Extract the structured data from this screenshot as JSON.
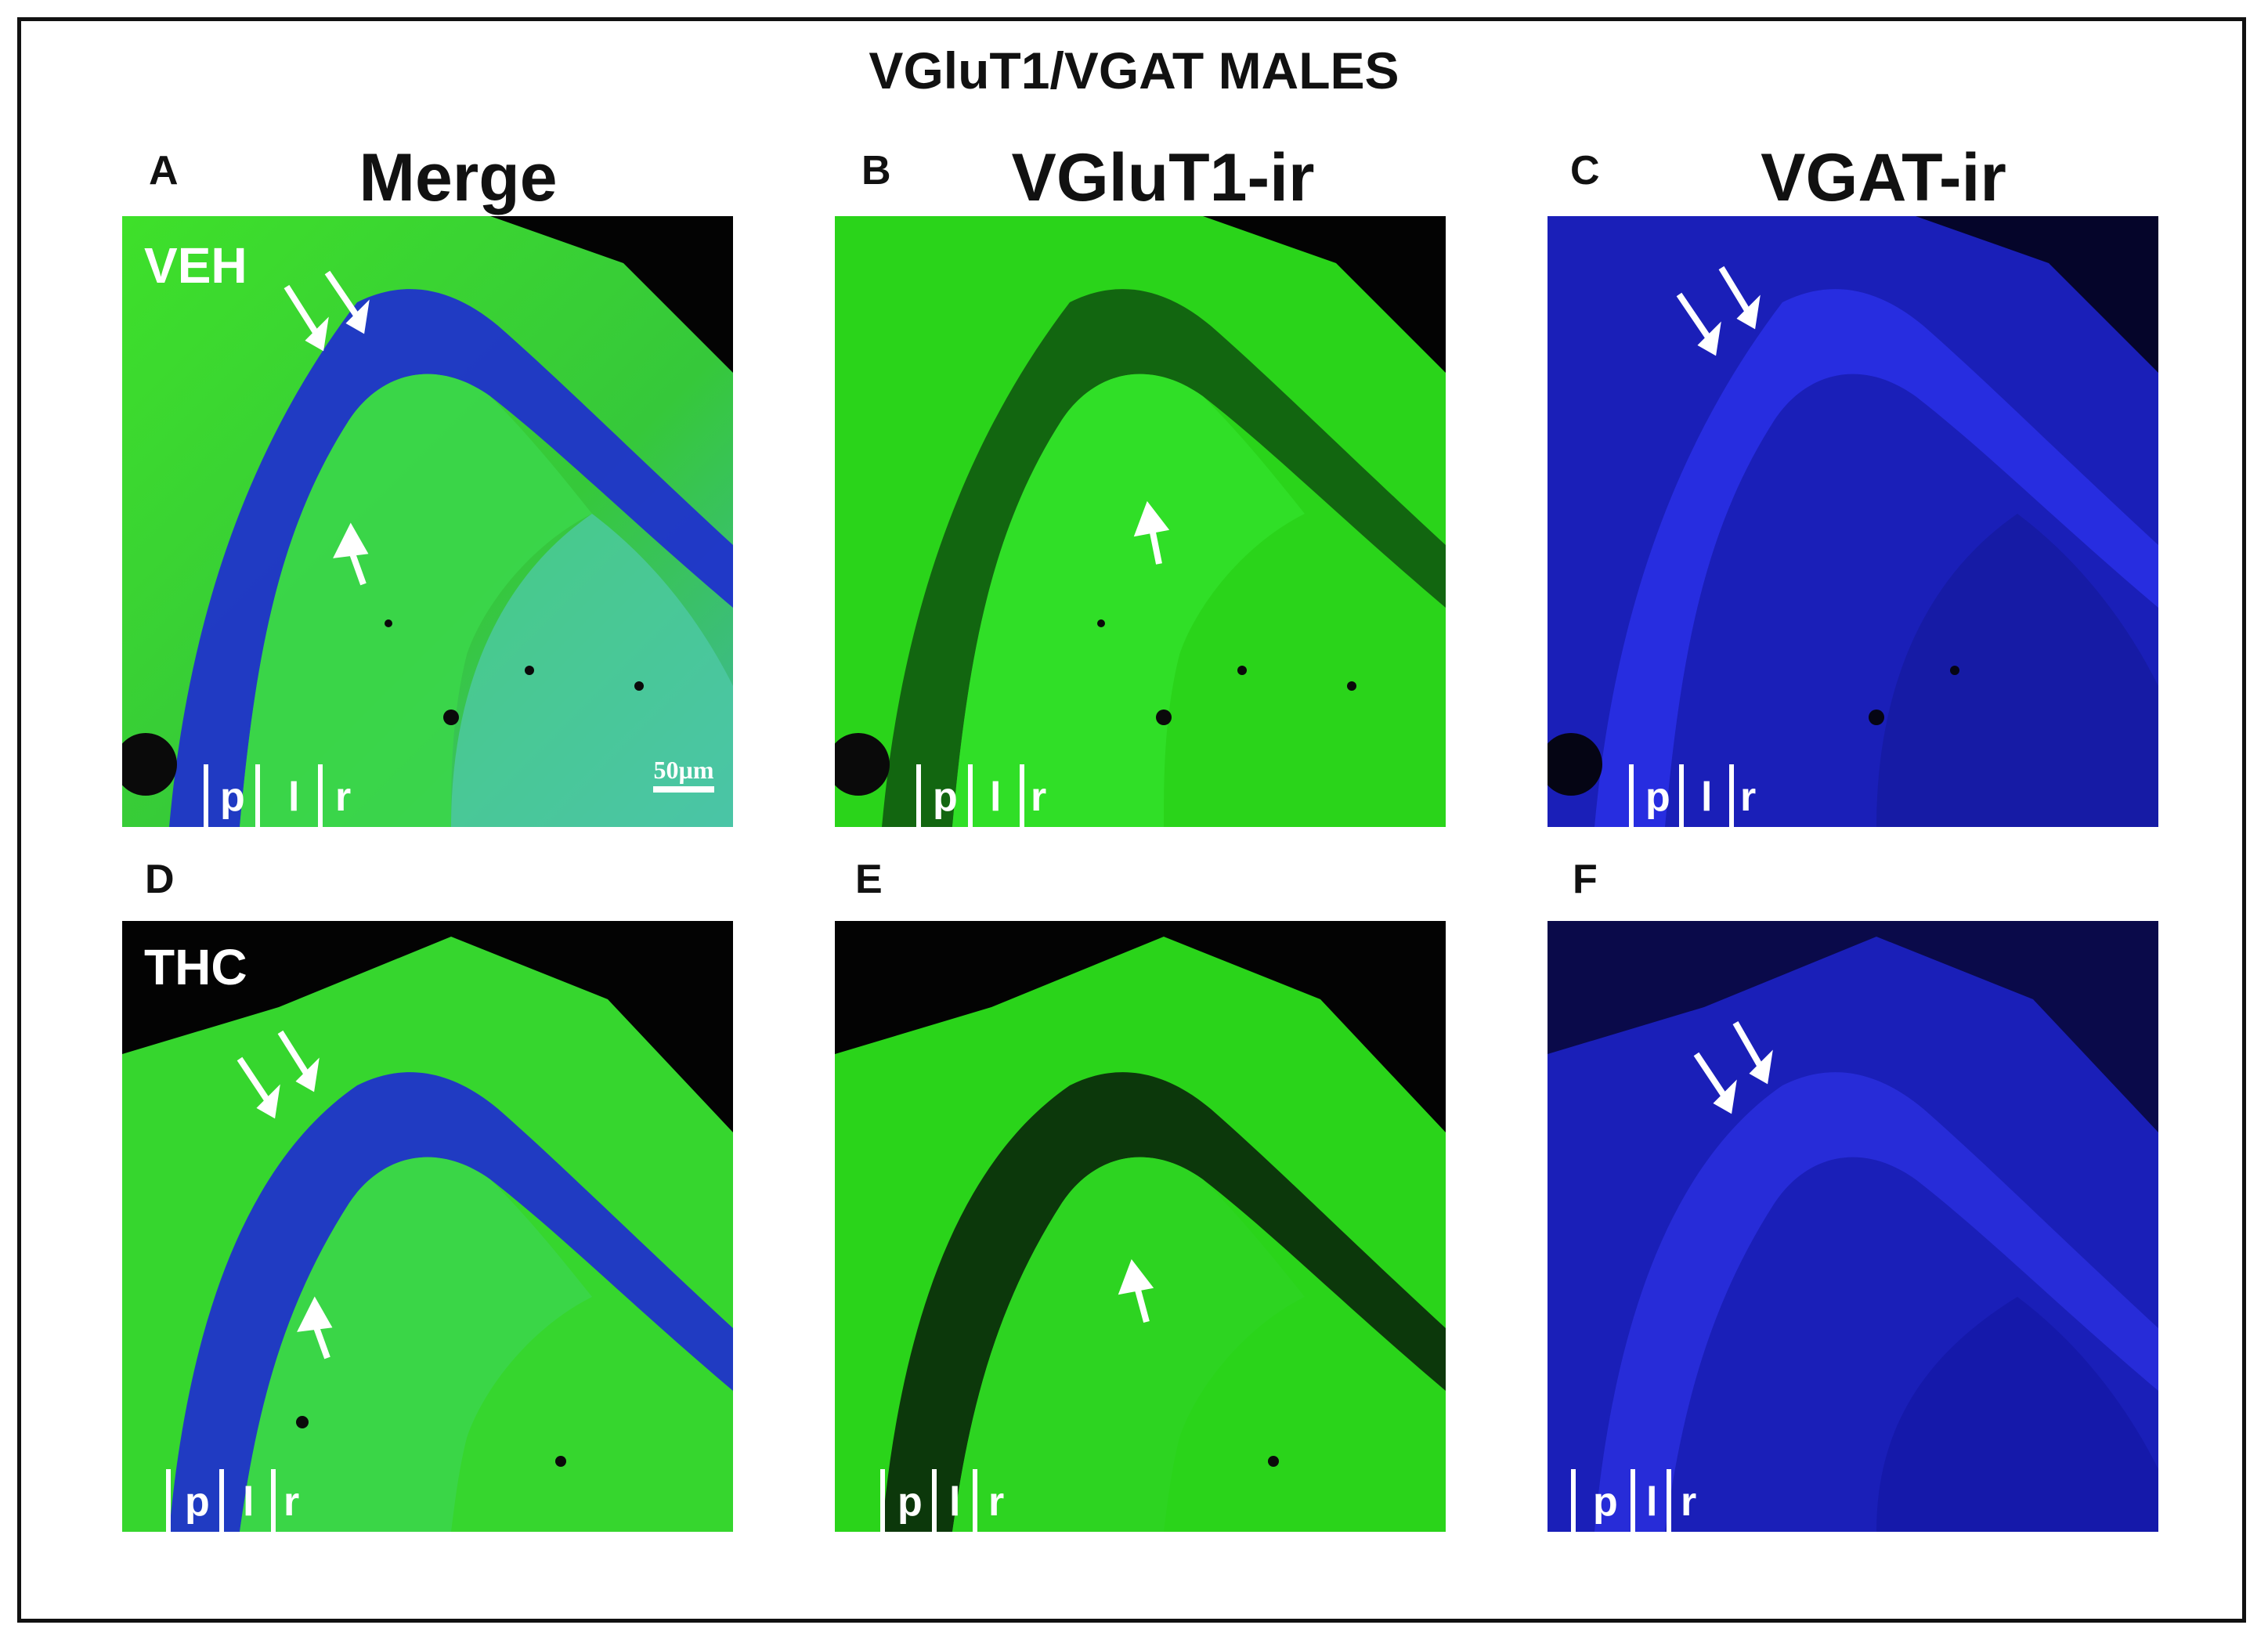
{
  "figure": {
    "title": "VGluT1/VGAT MALES",
    "columns": [
      {
        "letter_top": "A",
        "letter_bottom": "D",
        "title": "Merge"
      },
      {
        "letter_top": "B",
        "letter_bottom": "E",
        "title": "VGluT1-ir"
      },
      {
        "letter_top": "C",
        "letter_bottom": "F",
        "title": "VGAT-ir"
      }
    ],
    "conditions": {
      "top": "VEH",
      "bottom": "THC"
    },
    "layers": {
      "p": "p",
      "l": "l",
      "r": "r"
    },
    "scale_bar": "50µm",
    "colors": {
      "green": "#2fd61e",
      "blue": "#1a1fcf",
      "dark": "#050505"
    }
  }
}
